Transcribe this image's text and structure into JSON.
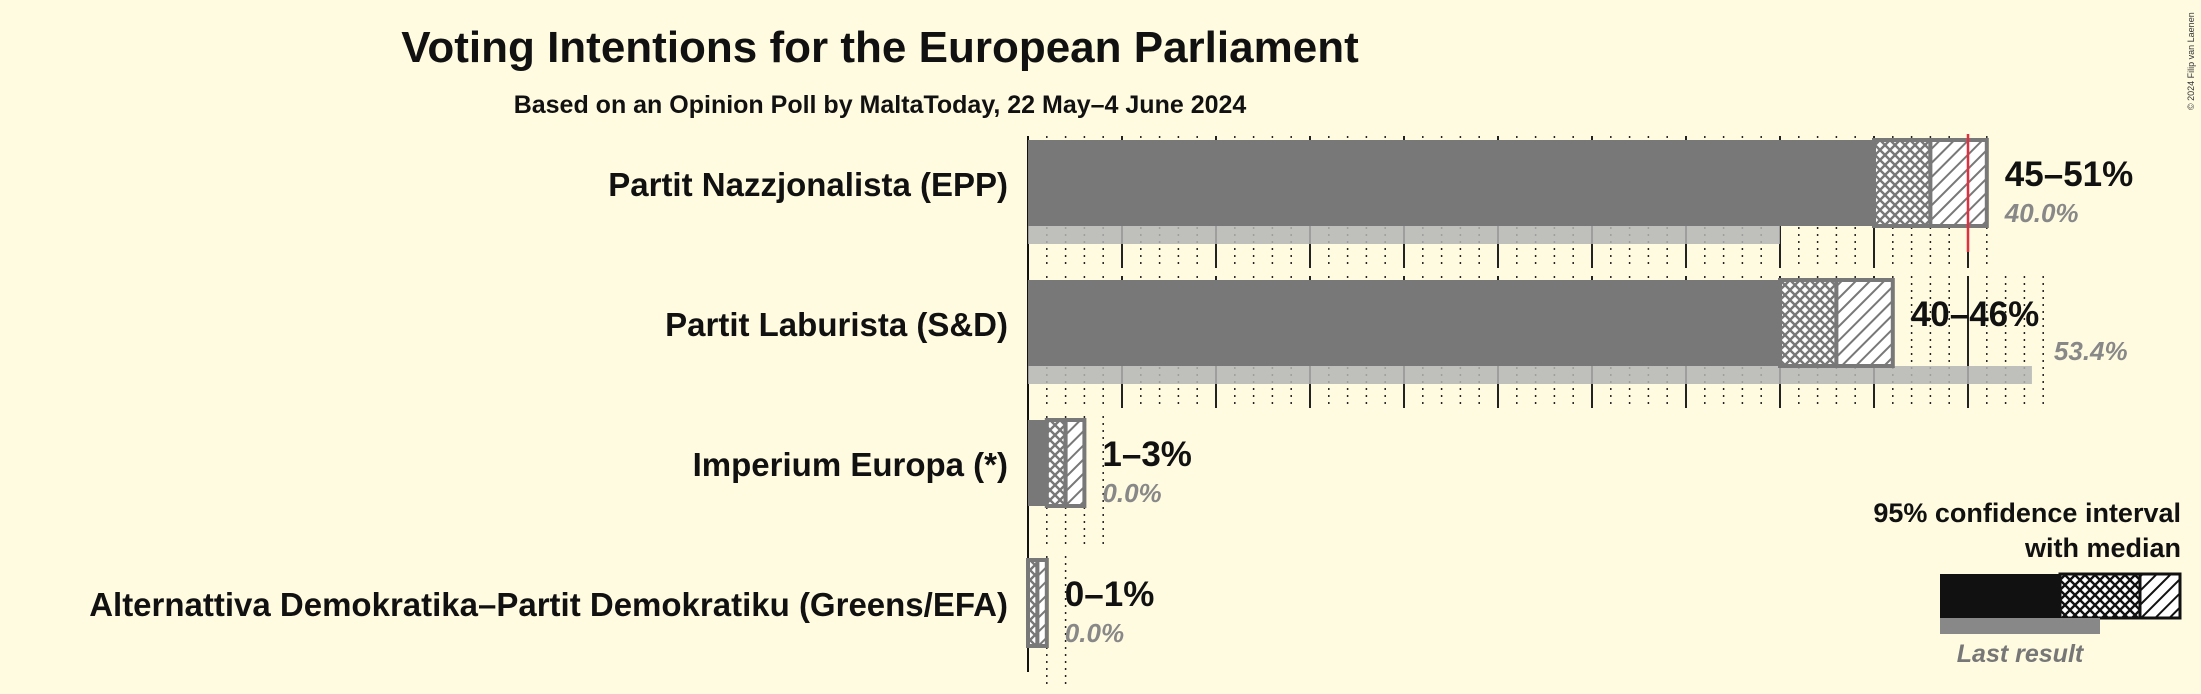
{
  "copyright": "© 2024 Filip van Laenen",
  "legend": {
    "line1": "95% confidence interval",
    "line2": "with median",
    "last_result": "Last result"
  },
  "colors": {
    "bar": "#787878",
    "last_result": "#b4b4b4",
    "last_result_text": "#888888",
    "threshold_line": "#e03040",
    "background": "#fffbe0"
  },
  "chart_data": {
    "type": "bar",
    "orientation": "horizontal",
    "title": "Voting Intentions for the European Parliament",
    "subtitle": "Based on an Opinion Poll by MaltaToday, 22 May–4 June 2024",
    "xlim": [
      0,
      55
    ],
    "grid": "vertical lines every 5 percentage points, dotted lines every 1 point",
    "threshold": 50,
    "series": [
      {
        "party": "Partit Nazzjonalista (EPP)",
        "ci_low": 45,
        "median": 48,
        "ci_high": 51,
        "range_label": "45–51%",
        "last_result": 40.0,
        "last_label": "40.0%"
      },
      {
        "party": "Partit Laburista (S&D)",
        "ci_low": 40,
        "median": 43,
        "ci_high": 46,
        "range_label": "40–46%",
        "last_result": 53.4,
        "last_label": "53.4%"
      },
      {
        "party": "Imperium Europa (*)",
        "ci_low": 1,
        "median": 2,
        "ci_high": 3,
        "range_label": "1–3%",
        "last_result": 0.0,
        "last_label": "0.0%"
      },
      {
        "party": "Alternattiva Demokratika–Partit Demokratiku (Greens/EFA)",
        "ci_low": 0,
        "median": 0.5,
        "ci_high": 1,
        "range_label": "0–1%",
        "last_result": 0.0,
        "last_label": "0.0%"
      }
    ]
  }
}
